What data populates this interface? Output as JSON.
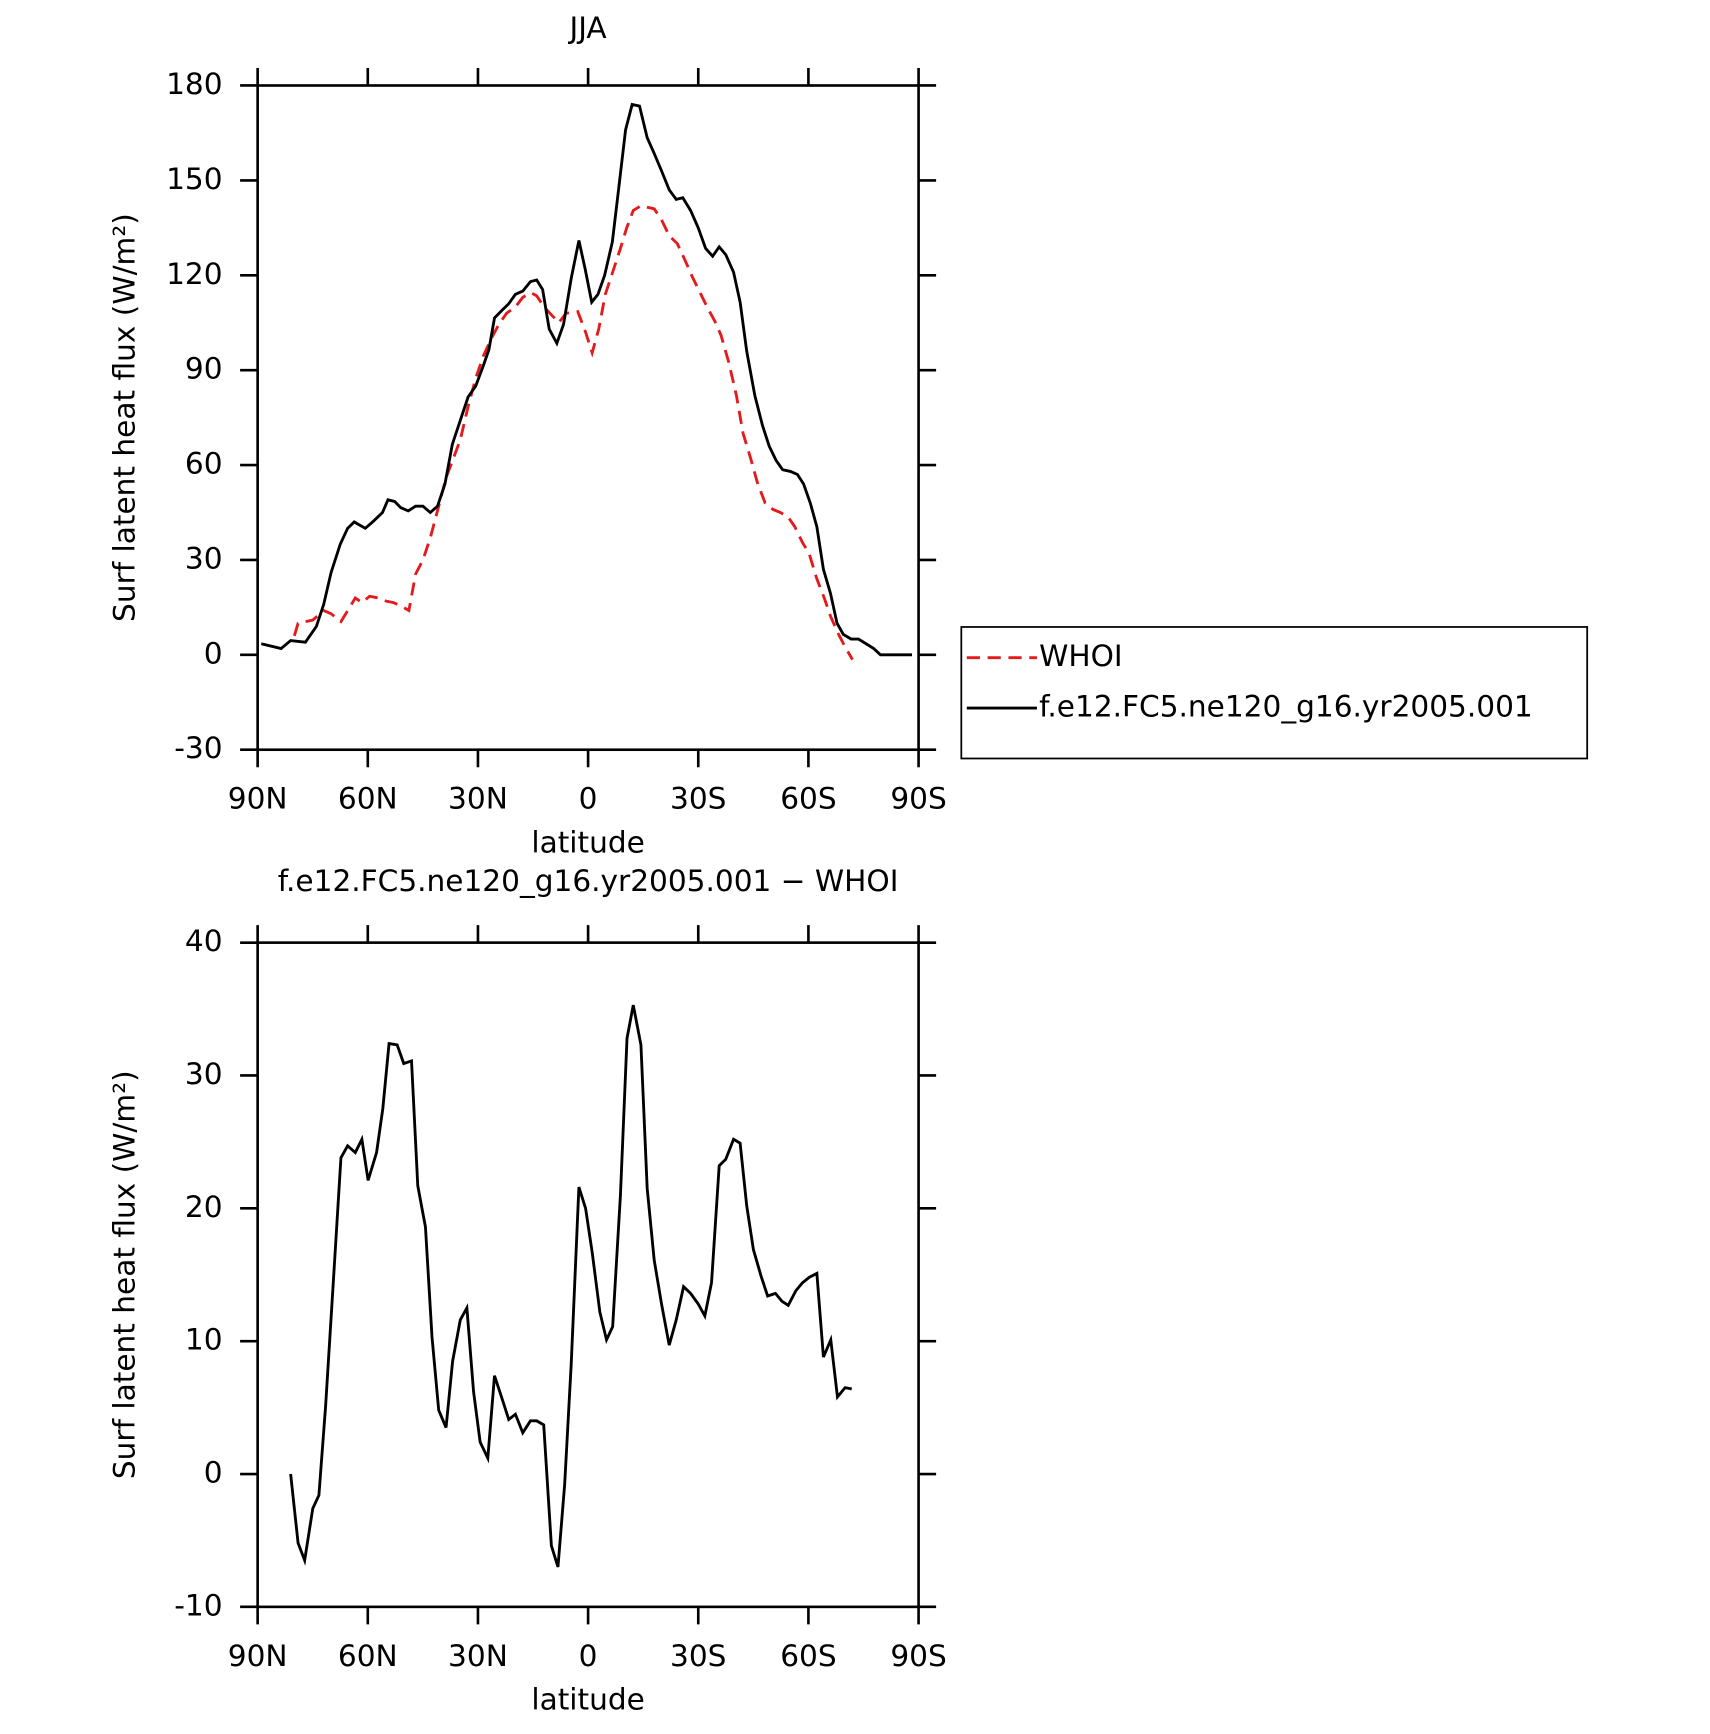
{
  "chart_data": [
    {
      "type": "line",
      "title": "JJA",
      "xlabel": "latitude",
      "ylabel": "Surf latent heat flux (W/m²)",
      "xlim": [
        90,
        -90
      ],
      "xticks": [
        {
          "value": 90,
          "label": "90N"
        },
        {
          "value": 60,
          "label": "60N"
        },
        {
          "value": 30,
          "label": "30N"
        },
        0,
        {
          "value": -30,
          "label": "30S"
        },
        {
          "value": -60,
          "label": "60S"
        },
        {
          "value": -90,
          "label": "90S"
        }
      ],
      "ylim": [
        -30,
        180
      ],
      "yticks": [
        -30,
        0,
        30,
        60,
        90,
        120,
        150,
        180
      ],
      "legend": "right",
      "series": [
        {
          "name": "WHOI",
          "color": "#e41a1c",
          "style": "dashed",
          "x": [
            80,
            79,
            75,
            72,
            70,
            67.3,
            65.2,
            63.4,
            61.6,
            59.5,
            57.2,
            55,
            53,
            51,
            48.8,
            47,
            45,
            43,
            40.7,
            38.7,
            36.9,
            34.8,
            32.7,
            30.6,
            28.5,
            26.4,
            24.3,
            22.2,
            19.8,
            17.8,
            15.6,
            14,
            12,
            10,
            8,
            6,
            2.8,
            0.7,
            -1.1,
            -2.9,
            -4.7,
            -6.7,
            -8.8,
            -10.5,
            -12.3,
            -14.4,
            -16.1,
            -18,
            -20,
            -22.1,
            -24.3,
            -26.3,
            -28.4,
            -30.3,
            -32.4,
            -34.5,
            -36.2,
            -38.3,
            -40.4,
            -42.2,
            -44.3,
            -46.1,
            -48.2,
            -50.3,
            -52.4,
            -54.5,
            -56.3,
            -58.4,
            -60.2,
            -62.3,
            -64.3,
            -66.1,
            -68.2,
            -70,
            -72
          ],
          "values": [
            6,
            10,
            11,
            14,
            13,
            10.5,
            14.5,
            18,
            16.5,
            18.5,
            18,
            17,
            16.5,
            15.5,
            14,
            25.5,
            30,
            37,
            47,
            56,
            61.5,
            68,
            78.5,
            87.5,
            94.5,
            100,
            104.5,
            108,
            110,
            113,
            114.5,
            113.5,
            110,
            107.5,
            105,
            108,
            108.5,
            102,
            95.5,
            103,
            114,
            121,
            128.5,
            135,
            140.5,
            142,
            141.5,
            141,
            137.5,
            132.5,
            130,
            125,
            119.5,
            115,
            110,
            105.5,
            101,
            92.5,
            82,
            70,
            62,
            54.5,
            48,
            46,
            45,
            43.5,
            40.5,
            35.5,
            32,
            24,
            18,
            12,
            6.5,
            2.5,
            -1.5
          ]
        },
        {
          "name": "f.e12.FC5.ne120_g16.yr2005.001",
          "color": "#000000",
          "style": "solid",
          "x": [
            89,
            83.6,
            81,
            77,
            74,
            72,
            70,
            67.5,
            65.5,
            63.7,
            60.7,
            58.7,
            56,
            54.5,
            52.7,
            51,
            49,
            47,
            45,
            43,
            41,
            39,
            37,
            35,
            32.7,
            30.6,
            28.5,
            27,
            25.5,
            23.4,
            21.6,
            19.8,
            17.8,
            15.7,
            14,
            12.4,
            10.6,
            8.5,
            6.7,
            4.6,
            2.5,
            0.8,
            -1,
            -2.7,
            -4.5,
            -6.6,
            -8.4,
            -10.2,
            -12,
            -14,
            -16.1,
            -18,
            -20,
            -22.1,
            -24,
            -25.8,
            -27.9,
            -30,
            -32,
            -33.9,
            -35.7,
            -37.5,
            -39.6,
            -41.4,
            -43.2,
            -45.4,
            -47.5,
            -49.3,
            -51.2,
            -53,
            -55.1,
            -57,
            -58.7,
            -60.5,
            -62.3,
            -64.1,
            -66,
            -67.8,
            -69.5,
            -71.6,
            -73.6,
            -75.7,
            -77.8,
            -79.6,
            -82.2,
            -84.6,
            -88.2
          ],
          "values": [
            3.5,
            2,
            4.5,
            4,
            9,
            16,
            26,
            35,
            40,
            42,
            40,
            42,
            45,
            49,
            48.5,
            46.5,
            45.5,
            47,
            47,
            45,
            47,
            54,
            66.5,
            73.5,
            81.5,
            85,
            91.5,
            96.5,
            106.5,
            109,
            111,
            114,
            115,
            118,
            118.5,
            115.5,
            103,
            98.5,
            104.5,
            119,
            131,
            122,
            111.5,
            114,
            120,
            130.5,
            148,
            166,
            174,
            173.5,
            163.5,
            158.5,
            153,
            147,
            144,
            144.5,
            140.5,
            135,
            128.5,
            126,
            129,
            126.5,
            121,
            111.5,
            96,
            82,
            72.5,
            66,
            61.5,
            58.5,
            58,
            57,
            54,
            48,
            40.5,
            27,
            19.5,
            10,
            6.5,
            5,
            5,
            3.5,
            2,
            0,
            0,
            0,
            0
          ]
        }
      ]
    },
    {
      "type": "line",
      "title": "f.e12.FC5.ne120_g16.yr2005.001 − WHOI",
      "xlabel": "latitude",
      "ylabel": "Surf latent heat flux (W/m²)",
      "xlim": [
        90,
        -90
      ],
      "xticks": [
        {
          "value": 90,
          "label": "90N"
        },
        {
          "value": 60,
          "label": "60N"
        },
        {
          "value": 30,
          "label": "30N"
        },
        0,
        {
          "value": -30,
          "label": "30S"
        },
        {
          "value": -60,
          "label": "60S"
        },
        {
          "value": -90,
          "label": "90S"
        }
      ],
      "ylim": [
        -10,
        40
      ],
      "yticks": [
        -10,
        0,
        10,
        20,
        30,
        40
      ],
      "series": [
        {
          "color": "#000000",
          "style": "solid",
          "x": [
            81,
            79,
            77.2,
            75,
            73.3,
            71.5,
            69.4,
            67.3,
            65.5,
            63.4,
            61.6,
            59.9,
            57.6,
            55.9,
            54.2,
            52,
            50.2,
            48.1,
            46.4,
            44.3,
            42.5,
            40.7,
            38.7,
            36.9,
            34.8,
            33,
            31.2,
            29.4,
            27.3,
            25.5,
            23.7,
            21.6,
            19.8,
            17.8,
            15.7,
            14,
            12.1,
            10,
            8.2,
            6.4,
            4.6,
            2.5,
            0.7,
            -1.1,
            -3.2,
            -5,
            -6.7,
            -8.8,
            -10.6,
            -12.3,
            -14.4,
            -16.1,
            -18,
            -20,
            -22.1,
            -24,
            -26,
            -27.9,
            -30,
            -31.8,
            -33.6,
            -35.7,
            -37.5,
            -39.6,
            -41.4,
            -43.2,
            -45,
            -47.1,
            -48.9,
            -51,
            -52.8,
            -54.5,
            -56.6,
            -58.4,
            -60.2,
            -62.3,
            -64.1,
            -66.1,
            -67.9,
            -70,
            -71.8
          ],
          "values": [
            0,
            -5.2,
            -6.5,
            -2.6,
            -1.6,
            5.1,
            14.4,
            23.8,
            24.7,
            24.2,
            25.2,
            22.1,
            24.2,
            27.5,
            32.4,
            32.3,
            30.9,
            31.1,
            21.7,
            18.6,
            10.3,
            4.8,
            3.5,
            8.5,
            11.6,
            12.5,
            6.2,
            2.4,
            1.2,
            7.4,
            5.9,
            4.1,
            4.5,
            3.1,
            4,
            4,
            3.7,
            -5.4,
            -7,
            -0.8,
            8.3,
            21.6,
            20,
            16.7,
            12.2,
            10.1,
            11.1,
            21,
            32.8,
            35.3,
            32.3,
            21.5,
            16.1,
            12.8,
            9.7,
            11.6,
            14.1,
            13.6,
            12.8,
            11.9,
            14.4,
            23.2,
            23.7,
            25.2,
            24.9,
            20.2,
            16.9,
            14.9,
            13.4,
            13.6,
            13,
            12.7,
            13.8,
            14.4,
            14.8,
            15.1,
            8.8,
            10.1,
            5.8,
            6.5,
            6.4
          ]
        }
      ]
    }
  ]
}
